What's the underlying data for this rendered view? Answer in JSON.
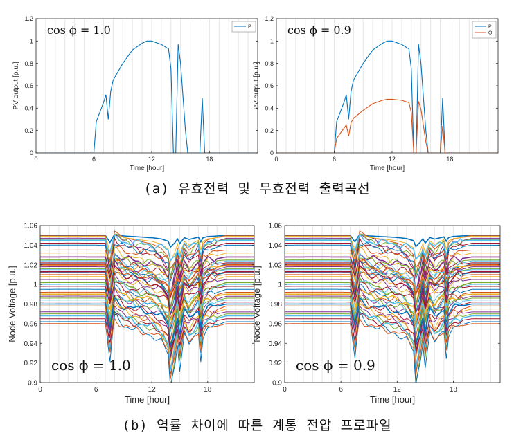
{
  "captions": {
    "a": "(a) 유효전력 및 무효전력 출력곡선",
    "b": "(b) 역률 차이에 따른 계통 전압 프로파일"
  },
  "colors": {
    "P": "#0072BD",
    "Q": "#D95319",
    "voltage_palette": [
      "#0072BD",
      "#D95319",
      "#EDB120",
      "#7E2F8E",
      "#77AC30",
      "#4DBEEE",
      "#A2142F"
    ]
  },
  "chart_data": [
    {
      "id": "pv-pf10",
      "type": "line",
      "annotation": "cos ϕ = 1.0",
      "xlabel": "Time [hour]",
      "ylabel": "PV output [p.u.]",
      "xlim": [
        0,
        23
      ],
      "ylim": [
        0,
        1.2
      ],
      "xticks": [
        0,
        6,
        12,
        18
      ],
      "yticks": [
        0,
        0.2,
        0.4,
        0.6,
        0.8,
        1.0,
        1.2
      ],
      "ytick_labels": [
        "0",
        "0.2",
        "0.4",
        "0.6",
        "0.8",
        "1",
        "1.2"
      ],
      "grid": "vertical",
      "legend": {
        "position": "top-right",
        "entries": [
          "P"
        ]
      },
      "series": [
        {
          "name": "P",
          "color_key": "P",
          "points": [
            [
              0,
              0
            ],
            [
              6,
              0
            ],
            [
              6.25,
              0.28
            ],
            [
              7,
              0.45
            ],
            [
              7.25,
              0.52
            ],
            [
              7.5,
              0.3
            ],
            [
              7.75,
              0.55
            ],
            [
              8,
              0.65
            ],
            [
              9,
              0.8
            ],
            [
              10,
              0.92
            ],
            [
              11,
              0.98
            ],
            [
              11.5,
              1.0
            ],
            [
              12,
              1.0
            ],
            [
              13,
              0.97
            ],
            [
              13.75,
              0.93
            ],
            [
              14,
              0.75
            ],
            [
              14.25,
              0
            ],
            [
              14.5,
              0
            ],
            [
              14.75,
              0.97
            ],
            [
              15,
              0.8
            ],
            [
              15.5,
              0.2
            ],
            [
              15.75,
              0
            ],
            [
              17,
              0
            ],
            [
              17.25,
              0.49
            ],
            [
              17.5,
              0
            ],
            [
              23,
              0
            ]
          ]
        }
      ]
    },
    {
      "id": "pv-pf09",
      "type": "line",
      "annotation": "cos ϕ = 0.9",
      "xlabel": "Time [hour]",
      "ylabel": "PV output [p.u.]",
      "xlim": [
        0,
        23
      ],
      "ylim": [
        0,
        1.2
      ],
      "xticks": [
        0,
        6,
        12,
        18
      ],
      "yticks": [
        0,
        0.2,
        0.4,
        0.6,
        0.8,
        1.0,
        1.2
      ],
      "ytick_labels": [
        "0",
        "0.2",
        "0.4",
        "0.6",
        "0.8",
        "1",
        "1.2"
      ],
      "grid": "vertical",
      "legend": {
        "position": "top-right",
        "entries": [
          "P",
          "Q"
        ]
      },
      "series": [
        {
          "name": "P",
          "color_key": "P",
          "points": [
            [
              0,
              0
            ],
            [
              6,
              0
            ],
            [
              6.25,
              0.28
            ],
            [
              7,
              0.45
            ],
            [
              7.25,
              0.52
            ],
            [
              7.5,
              0.3
            ],
            [
              7.75,
              0.55
            ],
            [
              8,
              0.65
            ],
            [
              9,
              0.8
            ],
            [
              10,
              0.92
            ],
            [
              11,
              0.98
            ],
            [
              11.5,
              1.0
            ],
            [
              12,
              1.0
            ],
            [
              13,
              0.97
            ],
            [
              13.75,
              0.93
            ],
            [
              14,
              0.75
            ],
            [
              14.25,
              0
            ],
            [
              14.5,
              0
            ],
            [
              14.75,
              0.97
            ],
            [
              15,
              0.8
            ],
            [
              15.5,
              0.2
            ],
            [
              15.75,
              0
            ],
            [
              17,
              0
            ],
            [
              17.25,
              0.49
            ],
            [
              17.5,
              0
            ],
            [
              23,
              0
            ]
          ]
        },
        {
          "name": "Q",
          "color_key": "Q",
          "points": [
            [
              0,
              0
            ],
            [
              6,
              0
            ],
            [
              6.25,
              0.13
            ],
            [
              7,
              0.22
            ],
            [
              7.25,
              0.25
            ],
            [
              7.5,
              0.15
            ],
            [
              7.75,
              0.27
            ],
            [
              8,
              0.31
            ],
            [
              9,
              0.38
            ],
            [
              10,
              0.44
            ],
            [
              11,
              0.47
            ],
            [
              11.5,
              0.48
            ],
            [
              12,
              0.48
            ],
            [
              13,
              0.47
            ],
            [
              13.75,
              0.45
            ],
            [
              14,
              0.36
            ],
            [
              14.25,
              0
            ],
            [
              14.5,
              0
            ],
            [
              14.75,
              0.46
            ],
            [
              15,
              0.39
            ],
            [
              15.5,
              0.1
            ],
            [
              15.75,
              0
            ],
            [
              17,
              0
            ],
            [
              17.25,
              0.24
            ],
            [
              17.5,
              0
            ],
            [
              23,
              0
            ]
          ]
        }
      ]
    },
    {
      "id": "voltage-pf10",
      "type": "line",
      "annotation": "cos ϕ = 1.0",
      "xlabel": "Time [hour]",
      "ylabel": "Node Voltage [p.u.]",
      "xlim": [
        0,
        23
      ],
      "ylim": [
        0.9,
        1.06
      ],
      "xticks": [
        0,
        6,
        12,
        18
      ],
      "yticks": [
        0.9,
        0.92,
        0.94,
        0.96,
        0.98,
        1.0,
        1.02,
        1.04,
        1.06
      ],
      "ytick_labels": [
        "0.9",
        "0.92",
        "0.94",
        "0.96",
        "0.98",
        "1",
        "1.02",
        "1.04",
        "1.06"
      ],
      "grid": "vertical",
      "legend": "none",
      "node_count": 44,
      "node_base_voltages": [
        1.05,
        1.05,
        1.049,
        1.047,
        1.046,
        1.045,
        1.042,
        1.04,
        1.035,
        1.032,
        1.028,
        1.025,
        1.024,
        1.022,
        1.021,
        1.02,
        1.019,
        1.018,
        1.016,
        1.015,
        1.013,
        1.012,
        1.01,
        1.008,
        1.005,
        1.002,
        1.0,
        0.998,
        0.995,
        0.992,
        0.99,
        0.988,
        0.986,
        0.984,
        0.982,
        0.98,
        0.978,
        0.975,
        0.972,
        0.97,
        0.968,
        0.965,
        0.962,
        0.96
      ],
      "daily_deviation_shape": [
        [
          0,
          0
        ],
        [
          1,
          0.0005
        ],
        [
          2,
          0.001
        ],
        [
          3,
          0.0012
        ],
        [
          4,
          0.0012
        ],
        [
          5,
          0.001
        ],
        [
          6,
          0.0005
        ],
        [
          7,
          0
        ],
        [
          7.5,
          -0.6
        ],
        [
          8,
          0.1
        ],
        [
          9,
          -0.05
        ],
        [
          10,
          -0.1
        ],
        [
          11,
          -0.15
        ],
        [
          12,
          -0.2
        ],
        [
          13,
          -0.3
        ],
        [
          13.75,
          -0.5
        ],
        [
          14,
          -1.0
        ],
        [
          14.5,
          -0.6
        ],
        [
          14.75,
          -0.3
        ],
        [
          15,
          -0.7
        ],
        [
          15.5,
          -0.2
        ],
        [
          16,
          -0.35
        ],
        [
          17,
          -0.15
        ],
        [
          17.25,
          -0.55
        ],
        [
          17.5,
          -0.2
        ],
        [
          18,
          -0.1
        ],
        [
          19,
          -0.05
        ],
        [
          20,
          0
        ],
        [
          21,
          0
        ],
        [
          22,
          0
        ],
        [
          23,
          0
        ]
      ]
    },
    {
      "id": "voltage-pf09",
      "type": "line",
      "annotation": "cos ϕ = 0.9",
      "xlabel": "Time [hour]",
      "ylabel": "Node Voltage [p.u.]",
      "xlim": [
        0,
        23
      ],
      "ylim": [
        0.9,
        1.06
      ],
      "xticks": [
        0,
        6,
        12,
        18
      ],
      "yticks": [
        0.9,
        0.92,
        0.94,
        0.96,
        0.98,
        1.0,
        1.02,
        1.04,
        1.06
      ],
      "ytick_labels": [
        "0.9",
        "0.92",
        "0.94",
        "0.96",
        "0.98",
        "1",
        "1.02",
        "1.04",
        "1.06"
      ],
      "grid": "vertical",
      "legend": "none",
      "node_count": 44,
      "node_base_voltages": [
        1.05,
        1.05,
        1.049,
        1.047,
        1.046,
        1.045,
        1.042,
        1.04,
        1.035,
        1.032,
        1.028,
        1.025,
        1.024,
        1.022,
        1.021,
        1.02,
        1.019,
        1.018,
        1.016,
        1.015,
        1.013,
        1.012,
        1.01,
        1.008,
        1.005,
        1.002,
        1.0,
        0.998,
        0.995,
        0.992,
        0.99,
        0.988,
        0.986,
        0.984,
        0.982,
        0.98,
        0.978,
        0.975,
        0.972,
        0.97,
        0.968,
        0.965,
        0.962,
        0.96
      ],
      "daily_deviation_shape": [
        [
          0,
          0
        ],
        [
          1,
          0.0005
        ],
        [
          2,
          0.001
        ],
        [
          3,
          0.0012
        ],
        [
          4,
          0.0012
        ],
        [
          5,
          0.001
        ],
        [
          6,
          0.0005
        ],
        [
          7,
          0
        ],
        [
          7.5,
          -0.55
        ],
        [
          8,
          0.1
        ],
        [
          9,
          -0.04
        ],
        [
          10,
          -0.09
        ],
        [
          11,
          -0.13
        ],
        [
          12,
          -0.18
        ],
        [
          13,
          -0.27
        ],
        [
          13.75,
          -0.45
        ],
        [
          14,
          -0.95
        ],
        [
          14.5,
          -0.55
        ],
        [
          14.75,
          -0.28
        ],
        [
          15,
          -0.65
        ],
        [
          15.5,
          -0.18
        ],
        [
          16,
          -0.32
        ],
        [
          17,
          -0.13
        ],
        [
          17.25,
          -0.5
        ],
        [
          17.5,
          -0.18
        ],
        [
          18,
          -0.09
        ],
        [
          19,
          -0.04
        ],
        [
          20,
          0
        ],
        [
          21,
          0
        ],
        [
          22,
          0
        ],
        [
          23,
          0
        ]
      ]
    }
  ]
}
